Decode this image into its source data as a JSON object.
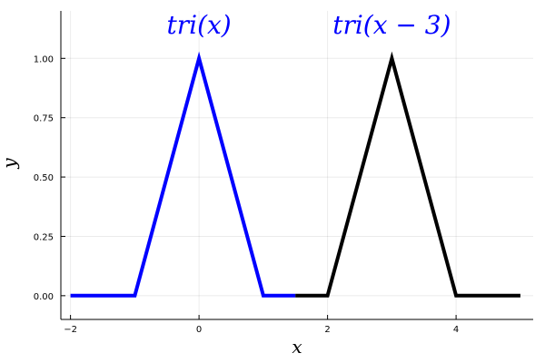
{
  "chart_data": {
    "type": "line",
    "xlabel": "x",
    "ylabel": "y",
    "xlim": [
      -2.15,
      5.2
    ],
    "ylim": [
      -0.1,
      1.2
    ],
    "xticks": [
      -2,
      0,
      2,
      4
    ],
    "xtick_labels": [
      "−2",
      "0",
      "2",
      "4"
    ],
    "yticks": [
      0,
      0.25,
      0.5,
      0.75,
      1.0
    ],
    "ytick_labels": [
      "0.00",
      "0.25",
      "0.50",
      "0.75",
      "1.00"
    ],
    "grid": true,
    "legend": "none",
    "series": [
      {
        "color": "#0000ff",
        "x": [
          -2,
          -1,
          0,
          1,
          1.5
        ],
        "y": [
          0,
          0,
          1,
          0,
          0
        ]
      },
      {
        "color": "#000000",
        "x": [
          1.5,
          2,
          3,
          4,
          5
        ],
        "y": [
          0,
          0,
          1,
          0,
          0
        ]
      }
    ],
    "annotations": [
      {
        "text": "tri(x)",
        "x": 0,
        "y": 1.15,
        "color": "#0000ff"
      },
      {
        "text": "tri(x − 3)",
        "x": 3,
        "y": 1.15,
        "color": "#0000ff"
      }
    ]
  }
}
